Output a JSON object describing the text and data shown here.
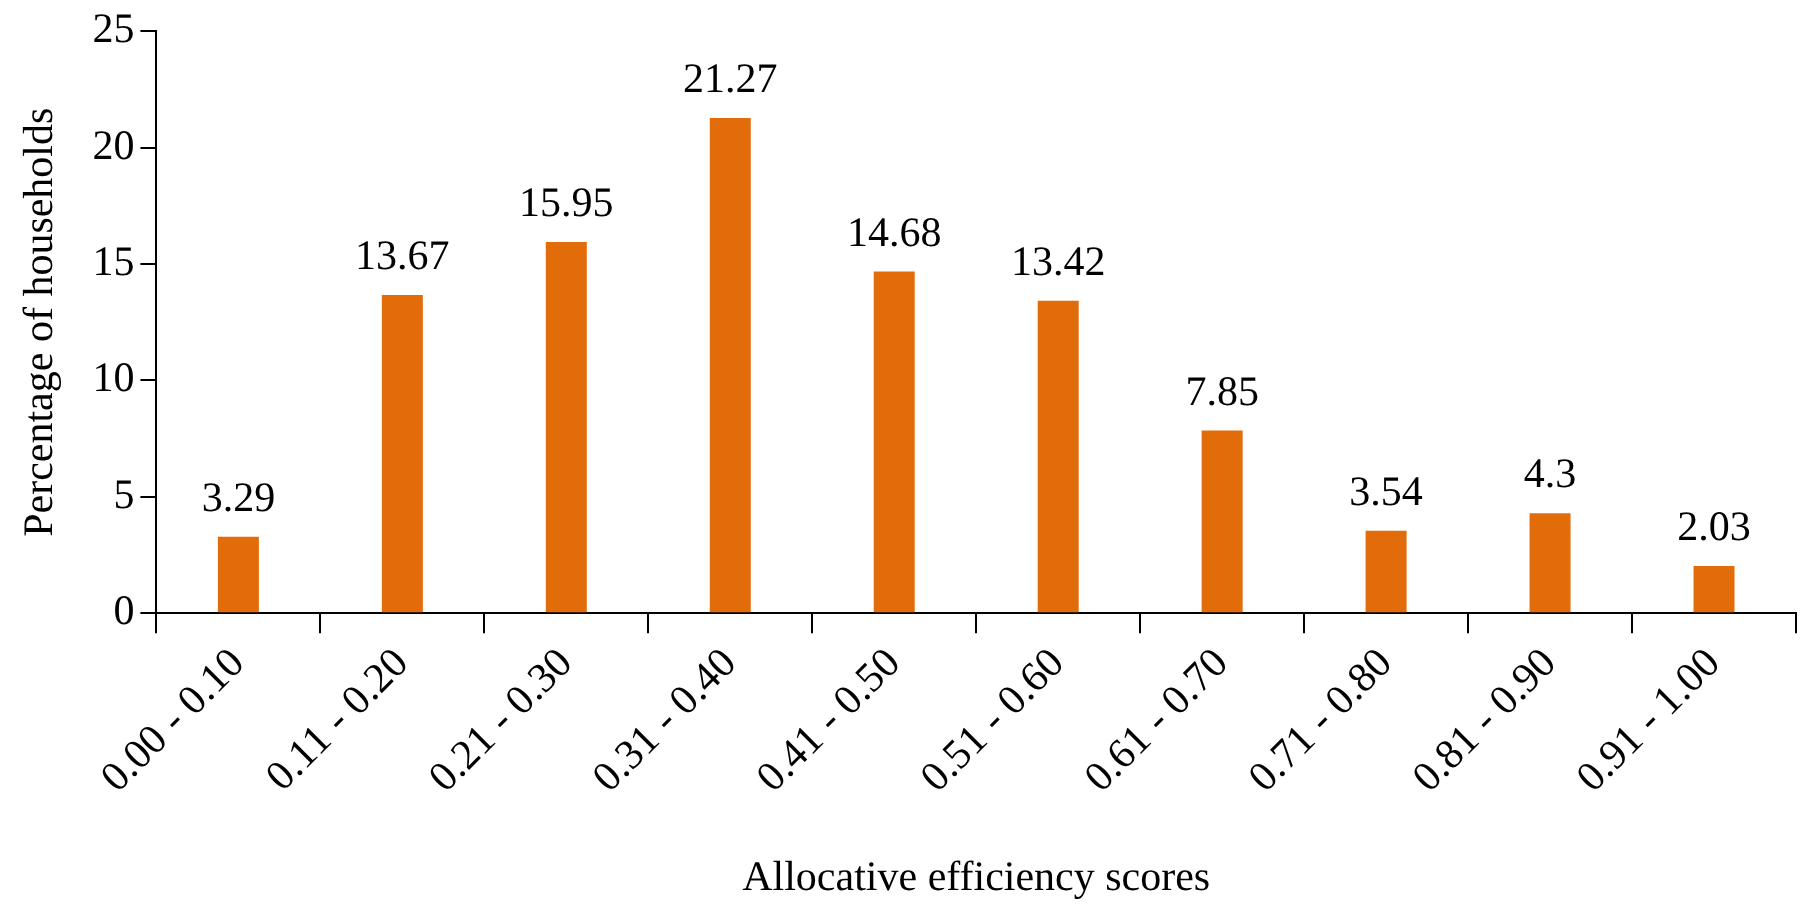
{
  "chart_data": {
    "type": "bar",
    "xlabel": "Allocative efficiency scores",
    "ylabel": "Percentage of households",
    "categories": [
      "0.00 - 0.10",
      "0.11 - 0.20",
      "0.21 - 0.30",
      "0.31 - 0.40",
      "0.41 - 0.50",
      "0.51 - 0.60",
      "0.61 - 0.70",
      "0.71 - 0.80",
      "0.81 - 0.90",
      "0.91 - 1.00"
    ],
    "values": [
      3.29,
      13.67,
      15.95,
      21.27,
      14.68,
      13.42,
      7.85,
      3.54,
      4.3,
      2.03
    ],
    "color": "#e36c0a",
    "ylim": [
      0,
      25
    ],
    "yticks": [
      0,
      5,
      10,
      15,
      20,
      25
    ],
    "grid": false,
    "legend": false,
    "data_labels": true
  }
}
